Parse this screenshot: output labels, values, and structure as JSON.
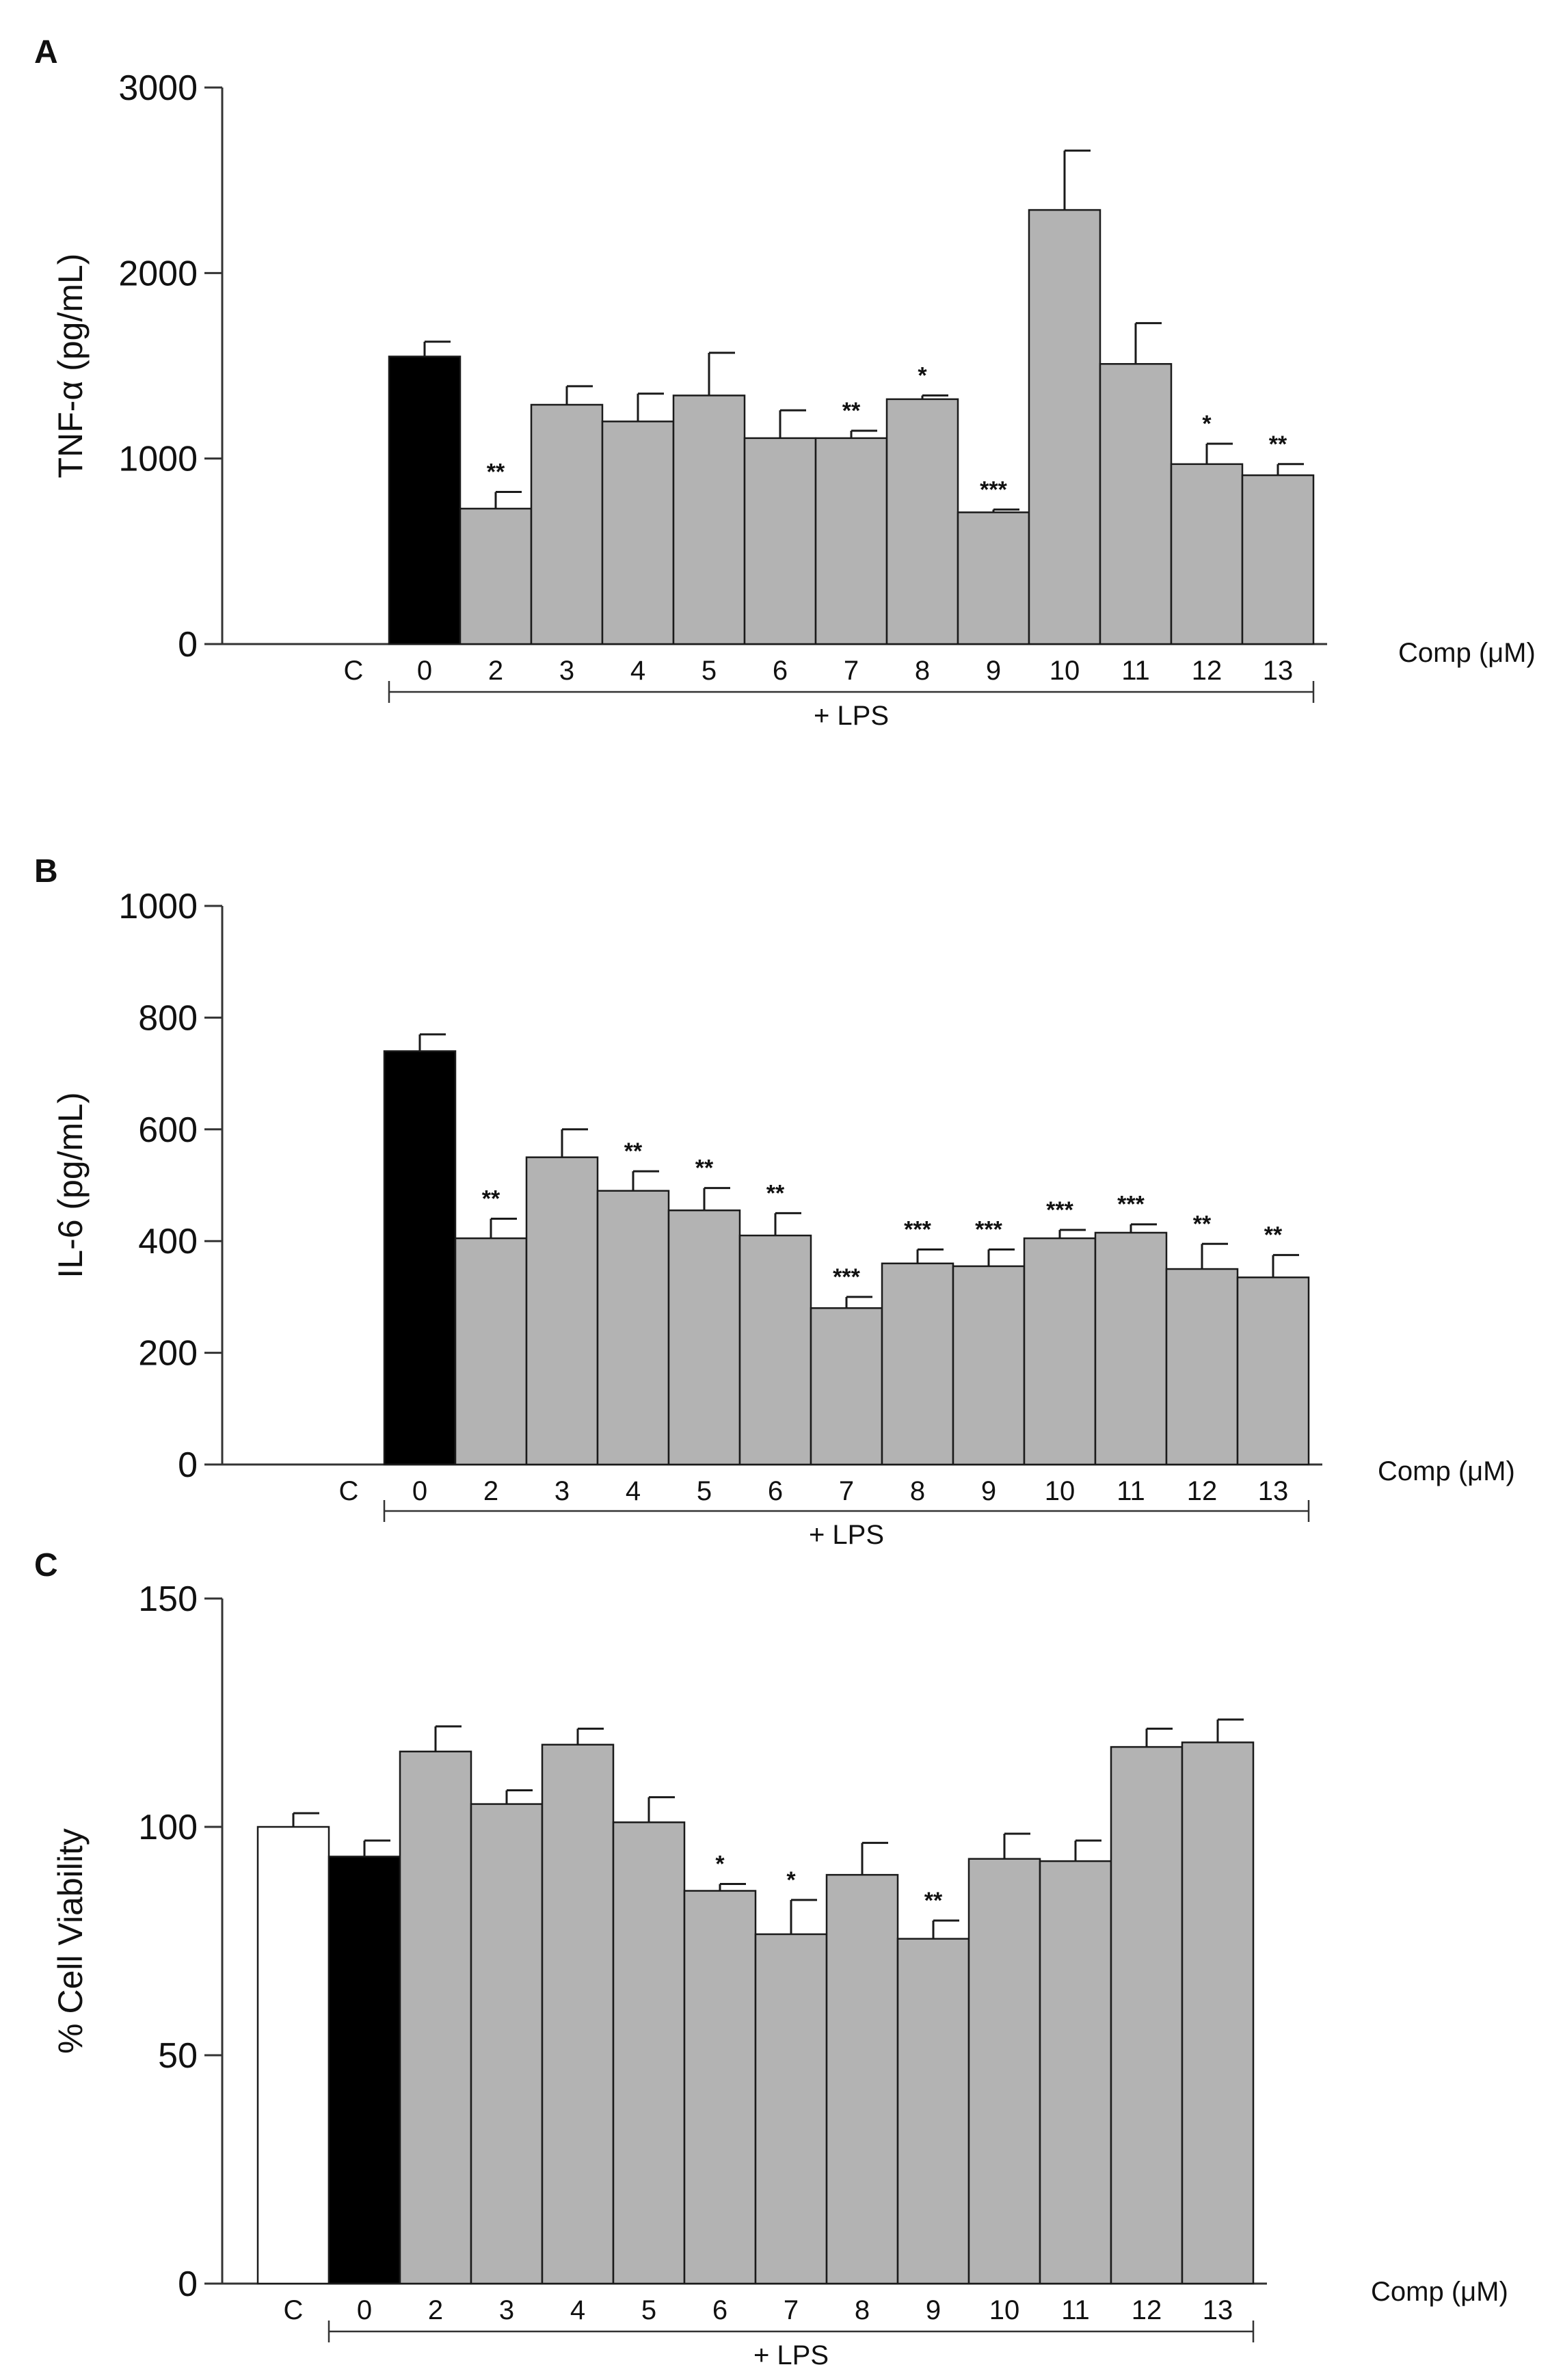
{
  "figure": {
    "bar_colors": {
      "control": "#ffffff",
      "vehicle": "#000000",
      "compound": "#b3b3b3",
      "stroke": "#1a1a1a"
    },
    "panel_A_letter": "A",
    "panel_B_letter": "B",
    "panel_C_letter": "C"
  },
  "chart_data": [
    {
      "panel": "A",
      "type": "bar",
      "ylabel": "TNF-α (pg/mL)",
      "xlabel": "Comp (μM)",
      "group_label": "+ LPS",
      "ylim": [
        0,
        3000
      ],
      "yticks": [
        0,
        1000,
        2000,
        3000
      ],
      "categories": [
        "C",
        "0",
        "2",
        "3",
        "4",
        "5",
        "6",
        "7",
        "8",
        "9",
        "10",
        "11",
        "12",
        "13"
      ],
      "values": [
        0,
        1550,
        730,
        1290,
        1200,
        1340,
        1110,
        1110,
        1320,
        710,
        2340,
        1510,
        970,
        910
      ],
      "errors": [
        0,
        80,
        90,
        100,
        150,
        230,
        150,
        40,
        20,
        15,
        320,
        220,
        110,
        60
      ],
      "significance": [
        "",
        "",
        "**",
        "",
        "",
        "",
        "",
        "**",
        "*",
        "***",
        "",
        "",
        "*",
        "**"
      ],
      "bar_kinds": [
        "none",
        "vehicle",
        "compound",
        "compound",
        "compound",
        "compound",
        "compound",
        "compound",
        "compound",
        "compound",
        "compound",
        "compound",
        "compound",
        "compound"
      ]
    },
    {
      "panel": "B",
      "type": "bar",
      "ylabel": "IL-6 (pg/mL)",
      "xlabel": "Comp (μM)",
      "group_label": "+ LPS",
      "ylim": [
        0,
        1000
      ],
      "yticks": [
        0,
        200,
        400,
        600,
        800,
        1000
      ],
      "categories": [
        "C",
        "0",
        "2",
        "3",
        "4",
        "5",
        "6",
        "7",
        "8",
        "9",
        "10",
        "11",
        "12",
        "13"
      ],
      "values": [
        0,
        740,
        405,
        550,
        490,
        455,
        410,
        280,
        360,
        355,
        405,
        415,
        350,
        335
      ],
      "errors": [
        0,
        30,
        35,
        50,
        35,
        40,
        40,
        20,
        25,
        30,
        15,
        15,
        45,
        40
      ],
      "significance": [
        "",
        "",
        "**",
        "",
        "**",
        "**",
        "**",
        "***",
        "***",
        "***",
        "***",
        "***",
        "**",
        "**"
      ],
      "bar_kinds": [
        "none",
        "vehicle",
        "compound",
        "compound",
        "compound",
        "compound",
        "compound",
        "compound",
        "compound",
        "compound",
        "compound",
        "compound",
        "compound",
        "compound"
      ]
    },
    {
      "panel": "C",
      "type": "bar",
      "ylabel": "% Cell Viability",
      "xlabel": "Comp (μM)",
      "group_label": "+ LPS",
      "ylim": [
        0,
        150
      ],
      "yticks": [
        0,
        50,
        100,
        150
      ],
      "categories": [
        "C",
        "0",
        "2",
        "3",
        "4",
        "5",
        "6",
        "7",
        "8",
        "9",
        "10",
        "11",
        "12",
        "13"
      ],
      "values": [
        100,
        93.5,
        116.5,
        105,
        118,
        101,
        86,
        76.5,
        89.5,
        75.5,
        93,
        92.5,
        117.5,
        118.5
      ],
      "errors": [
        3,
        3.5,
        5.5,
        3,
        3.5,
        5.5,
        1.5,
        7.5,
        7,
        4,
        5.5,
        4.5,
        4,
        5
      ],
      "significance": [
        "",
        "",
        "",
        "",
        "",
        "",
        "*",
        "*",
        "",
        "**",
        "",
        "",
        "",
        ""
      ],
      "bar_kinds": [
        "control",
        "vehicle",
        "compound",
        "compound",
        "compound",
        "compound",
        "compound",
        "compound",
        "compound",
        "compound",
        "compound",
        "compound",
        "compound",
        "compound"
      ]
    }
  ]
}
